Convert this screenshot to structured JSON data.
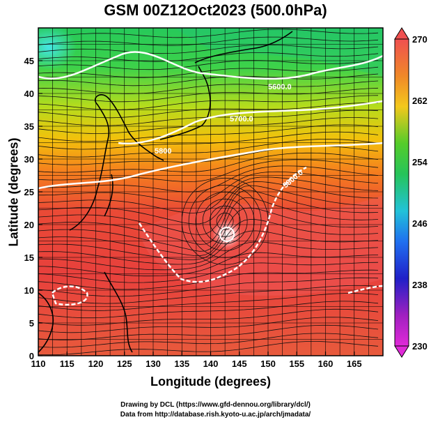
{
  "title": "GSM 00Z12Oct2023 (500.0hPa)",
  "x_axis_title": "Longitude (degrees)",
  "y_axis_title": "Latitude  (degrees)",
  "x_ticks": [
    "110",
    "115",
    "120",
    "125",
    "130",
    "135",
    "140",
    "145",
    "150",
    "155",
    "160",
    "165"
  ],
  "y_ticks": [
    "0",
    "5",
    "10",
    "15",
    "20",
    "25",
    "30",
    "35",
    "40",
    "45"
  ],
  "colorbar_ticks": [
    "270",
    "262",
    "254",
    "246",
    "238",
    "230"
  ],
  "contour_labels": [
    "5600.0",
    "5700.0",
    "5800",
    "5800.0"
  ],
  "credits": {
    "line1": "Drawing by DCL (https://www.gfd-dennou.org/library/dcl/)",
    "line2": "Data from http://database.rish.kyoto-u.ac.jp/arch/jmadata/"
  },
  "chart_data": {
    "type": "heatmap",
    "xlim": [
      110,
      170
    ],
    "ylim": [
      0,
      50
    ],
    "colorbar_range": [
      230,
      270
    ],
    "colors": {
      "cold": "#40e0d0",
      "cool": "#22b14c",
      "mild": "#f2d400",
      "warm": "#f57a1c",
      "hot": "#e83c3c",
      "max": "#f6565a",
      "min": "#e020d0"
    },
    "grid": true,
    "typhoon_center": {
      "lon": 142.5,
      "lat": 20.5
    }
  }
}
